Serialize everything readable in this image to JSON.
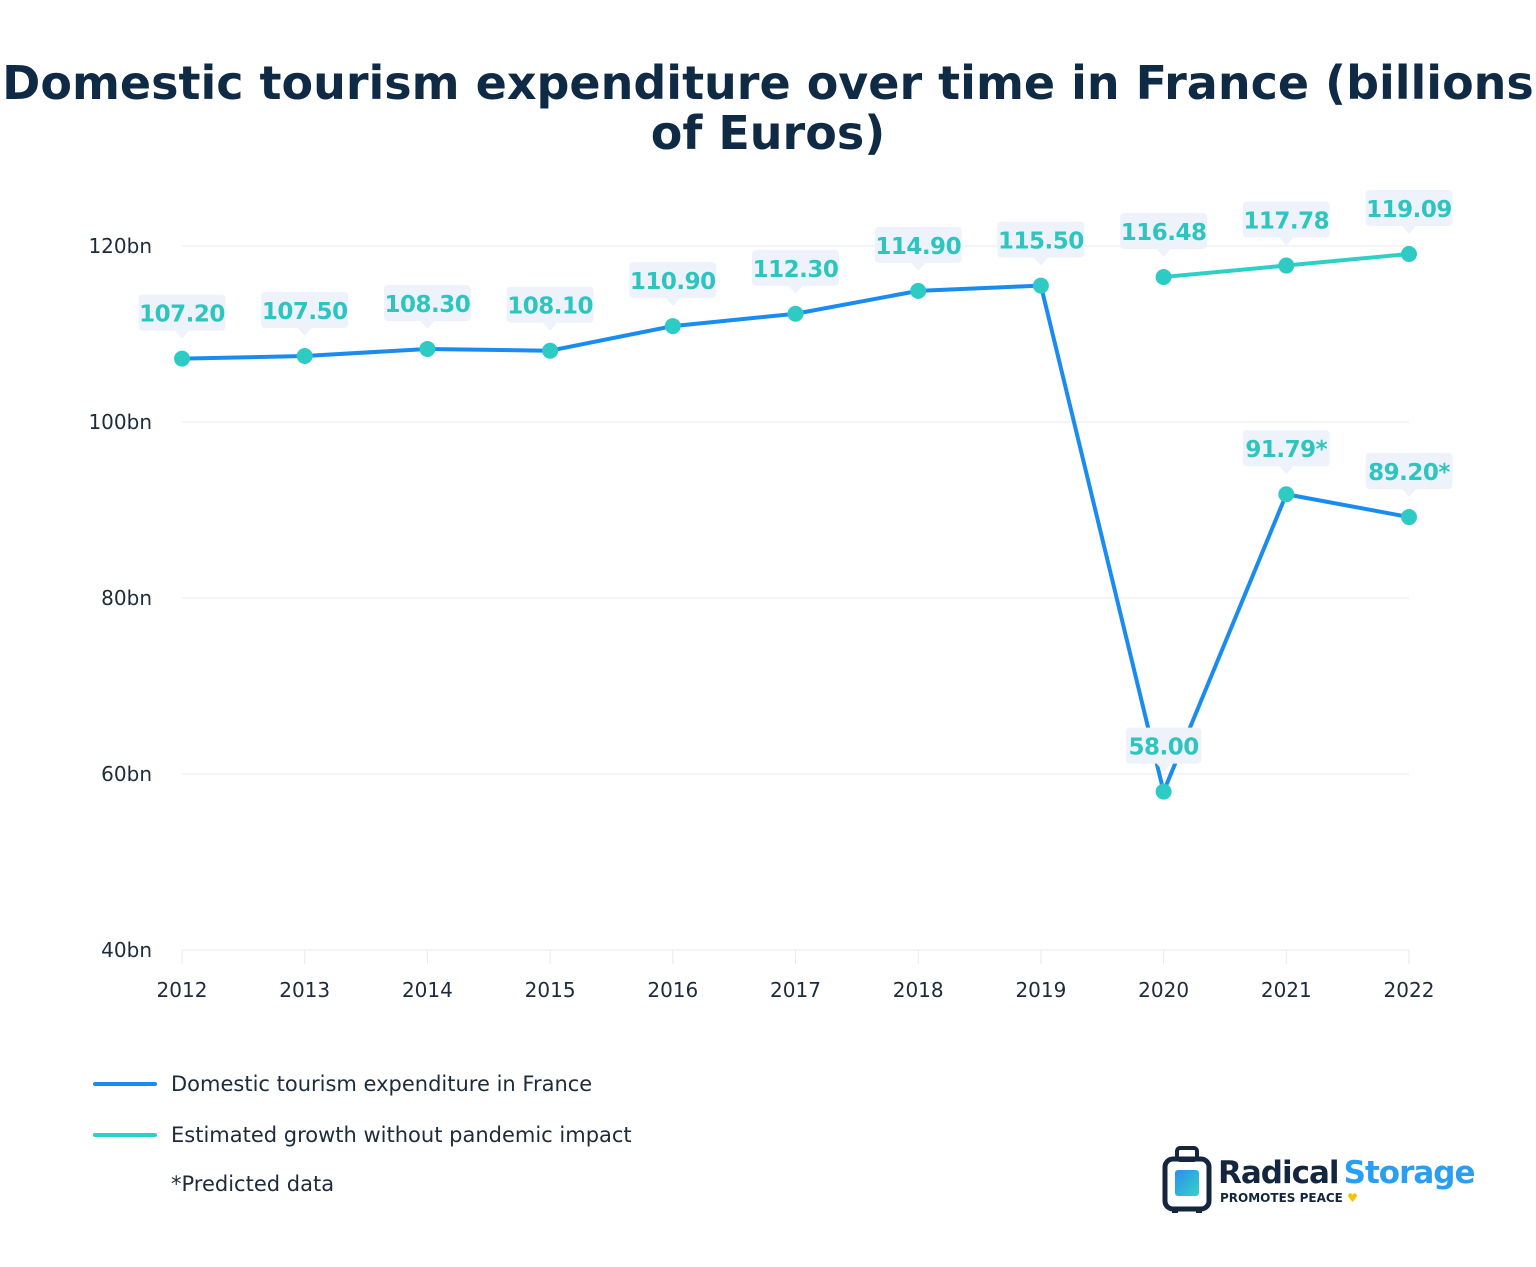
{
  "chart_data": {
    "type": "line",
    "title": "Domestic tourism expenditure over time in France (billions of Euros)",
    "xlabel": "",
    "ylabel": "",
    "x": [
      2012,
      2013,
      2014,
      2015,
      2016,
      2017,
      2018,
      2019,
      2020,
      2021,
      2022
    ],
    "ylim": [
      40,
      120
    ],
    "yticks": [
      "120bn",
      "100bn",
      "80bn",
      "60bn",
      "40bn"
    ],
    "ytick_values": [
      120,
      100,
      80,
      60,
      40
    ],
    "grid": true,
    "legend_position": "bottom-left",
    "series": [
      {
        "name": "Domestic tourism expenditure in France",
        "color": "#1a8cf0",
        "x": [
          2012,
          2013,
          2014,
          2015,
          2016,
          2017,
          2018,
          2019,
          2020,
          2021,
          2022
        ],
        "values": [
          107.2,
          107.5,
          108.3,
          108.1,
          110.9,
          112.3,
          114.9,
          115.5,
          58.0,
          91.79,
          89.2
        ],
        "labels": [
          "107.20",
          "107.50",
          "108.30",
          "108.10",
          "110.90",
          "112.30",
          "114.90",
          "115.50",
          "58.00",
          "91.79*",
          "89.20*"
        ]
      },
      {
        "name": "Estimated growth without pandemic impact",
        "color": "#2ecfc6",
        "x": [
          2020,
          2021,
          2022
        ],
        "values": [
          116.48,
          117.78,
          119.09
        ],
        "labels": [
          "116.48",
          "117.78",
          "119.09"
        ]
      }
    ],
    "footnote": "*Predicted data"
  },
  "colors": {
    "marker": "#2ecbc4",
    "label_text": "#2ec4c0",
    "label_bg": "#eef3fb",
    "title": "#0f2a44"
  },
  "logo": {
    "brand_dark": "Radical",
    "brand_light": "Storage",
    "tagline": "PROMOTES PEACE"
  }
}
